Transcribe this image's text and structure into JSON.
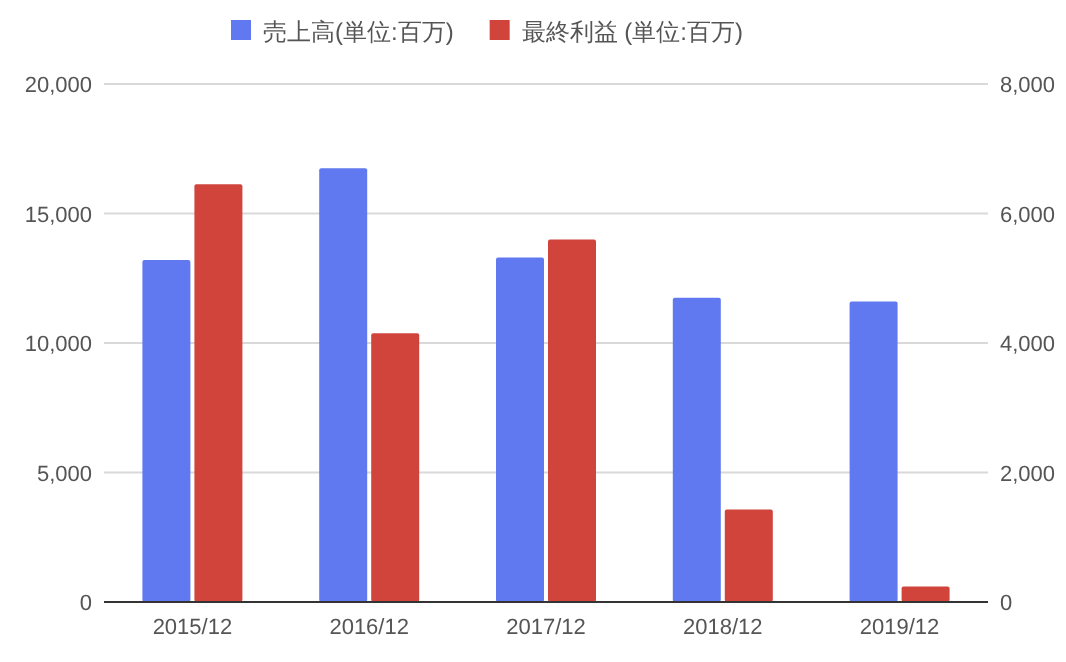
{
  "chart_data": {
    "type": "bar",
    "categories": [
      "2015/12",
      "2016/12",
      "2017/12",
      "2018/12",
      "2019/12"
    ],
    "series": [
      {
        "name": "売上高(単位:百万)",
        "color": "#6079f0",
        "values": [
          13200,
          16750,
          13300,
          11750,
          11600
        ]
      },
      {
        "name": "最終利益 (単位:百万)",
        "color": "#d0443b",
        "axis": "y2",
        "values": [
          6450,
          4150,
          5600,
          1430,
          240
        ]
      }
    ],
    "ylim": [
      0,
      20000
    ],
    "yticks": [
      {
        "value": 0,
        "label": "0"
      },
      {
        "value": 5000,
        "label": "5,000"
      },
      {
        "value": 10000,
        "label": "10,000"
      },
      {
        "value": 15000,
        "label": "15,000"
      },
      {
        "value": 20000,
        "label": "20,000"
      }
    ],
    "y2lim": [
      0,
      8000
    ],
    "y2ticks": [
      {
        "value": 0,
        "label": "0"
      },
      {
        "value": 2000,
        "label": "2,000"
      },
      {
        "value": 4000,
        "label": "4,000"
      },
      {
        "value": 6000,
        "label": "6,000"
      },
      {
        "value": 8000,
        "label": "8,000"
      }
    ],
    "grid": "y",
    "legend": "top"
  }
}
